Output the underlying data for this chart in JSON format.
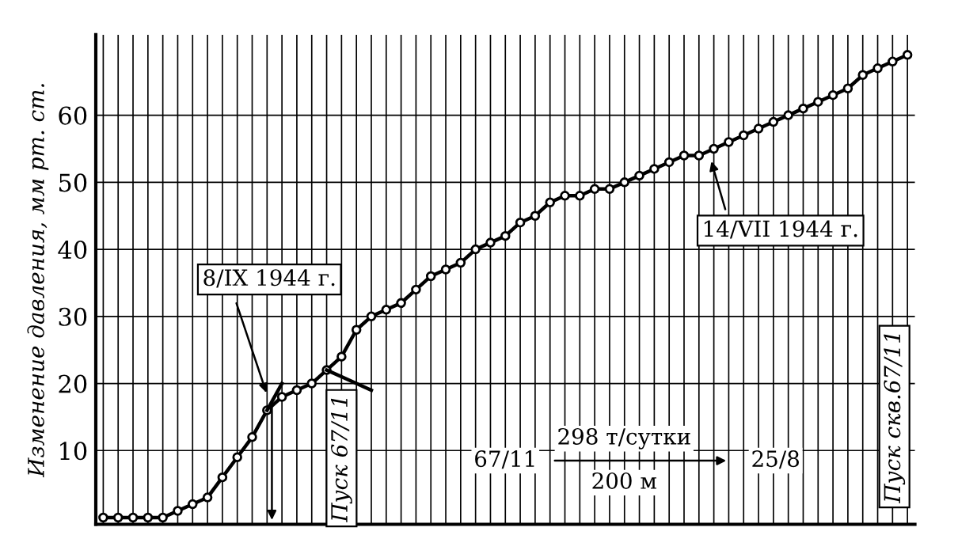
{
  "chart_data": {
    "type": "line",
    "ylabel": "Изменение давления, мм рт. ст.",
    "categories": [
      null,
      null,
      null,
      null,
      null,
      null,
      null,
      null,
      null,
      null,
      null,
      null,
      null,
      null,
      null,
      null,
      null,
      null,
      null,
      null,
      null,
      null,
      null,
      null,
      null,
      null,
      null,
      null,
      null,
      null,
      null,
      null,
      null,
      null,
      null,
      null,
      null,
      null,
      null,
      null,
      null,
      null,
      null,
      null,
      null,
      null,
      null,
      null,
      null,
      null,
      null,
      null,
      null,
      null,
      null
    ],
    "series": [
      {
        "color": "#000000",
        "marker": "circle",
        "values": [
          0,
          0,
          0,
          0,
          0,
          1,
          2,
          3,
          6,
          9,
          12,
          16,
          18,
          19,
          20,
          22,
          24,
          28,
          30,
          31,
          32,
          34,
          36,
          37,
          38,
          40,
          41,
          42,
          44,
          45,
          47,
          48,
          48,
          49,
          49,
          50,
          51,
          52,
          53,
          54,
          54,
          55,
          56,
          57,
          58,
          59,
          60,
          61,
          62,
          63,
          64,
          66,
          67,
          68,
          69
        ]
      },
      {
        "color": "#000000",
        "marker": "none",
        "values": [
          null,
          null,
          null,
          null,
          null,
          null,
          null,
          null,
          null,
          null,
          null,
          16,
          20,
          null,
          null,
          null,
          null,
          null,
          null,
          null,
          null,
          null,
          null,
          null,
          null,
          null,
          null,
          null,
          null,
          null,
          null,
          null,
          null,
          null,
          null,
          null,
          null,
          null,
          null,
          null,
          null,
          null,
          null,
          null,
          null,
          null,
          null,
          null,
          null,
          null,
          null,
          null,
          null,
          null,
          null
        ]
      },
      {
        "color": "#000000",
        "marker": "none",
        "values": [
          null,
          null,
          null,
          null,
          null,
          null,
          null,
          null,
          null,
          null,
          null,
          null,
          null,
          null,
          null,
          22,
          21,
          20,
          19,
          null,
          null,
          null,
          null,
          null,
          null,
          null,
          null,
          null,
          null,
          null,
          null,
          null,
          null,
          null,
          null,
          null,
          null,
          null,
          null,
          null,
          null,
          null,
          null,
          null,
          null,
          null,
          null,
          null,
          null,
          null,
          null,
          null,
          null,
          null,
          null
        ]
      }
    ],
    "ylim": [
      -1,
      72
    ],
    "yticks": [
      10,
      20,
      30,
      40,
      50,
      60
    ],
    "grid": true,
    "tick_labels": "y",
    "line_style": "solid",
    "annotations": [
      "8/IX 1944 г.",
      "14/VII 1944 г.",
      "Пуск 67/11",
      "Пуск скв.67/11",
      "67/11",
      "298 т/сутки",
      "200 м",
      "25/8"
    ]
  }
}
